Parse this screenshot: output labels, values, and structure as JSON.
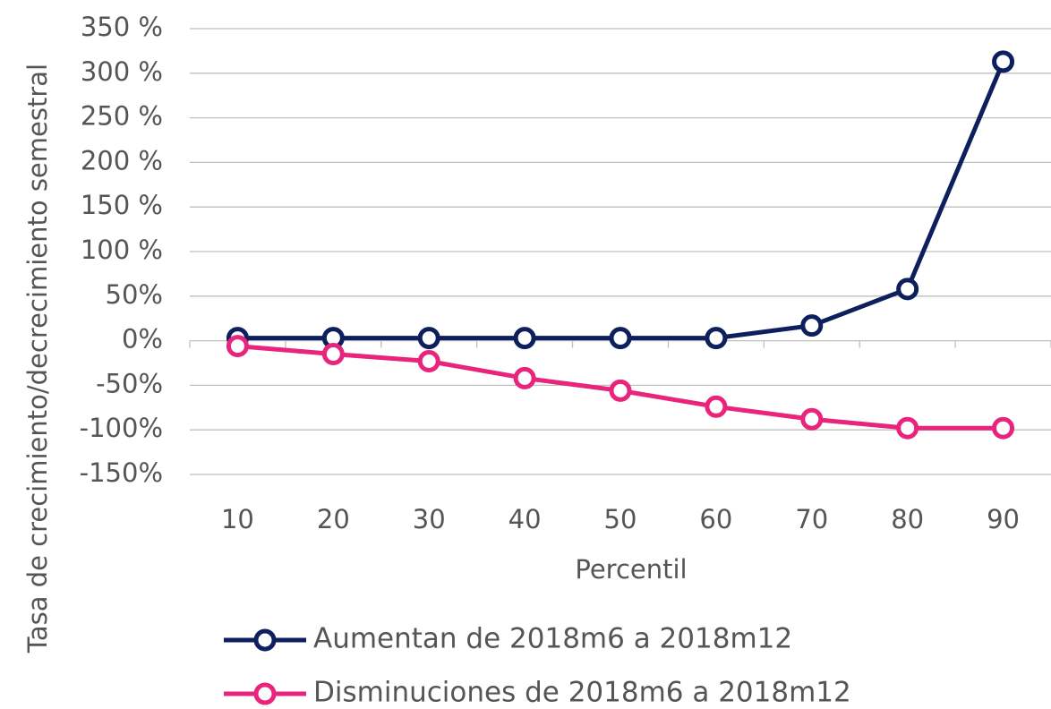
{
  "chart_data": {
    "type": "line",
    "y_label": "Tasa de crecimiento/decrecimiento semestral",
    "x_label": "Percentil",
    "categories": [
      "10",
      "20",
      "30",
      "40",
      "50",
      "60",
      "70",
      "80",
      "90"
    ],
    "series": [
      {
        "name": "Aumentan de 2018m6 a 2018m12",
        "color": "#0d1f5c",
        "values": [
          3,
          3,
          3,
          3,
          3,
          3,
          17,
          58,
          313
        ]
      },
      {
        "name": "Disminuciones de 2018m6 a 2018m12",
        "color": "#e8247c",
        "values": [
          -6,
          -15,
          -23,
          -42,
          -56,
          -74,
          -88,
          -98,
          -98
        ]
      }
    ],
    "ylim": [
      -150,
      350
    ],
    "yticks": [
      {
        "value": -150,
        "label": "-150%"
      },
      {
        "value": -100,
        "label": "-100%"
      },
      {
        "value": -50,
        "label": "-50%"
      },
      {
        "value": 0,
        "label": "0%"
      },
      {
        "value": 50,
        "label": "50%"
      },
      {
        "value": 100,
        "label": "100 %"
      },
      {
        "value": 150,
        "label": "150 %"
      },
      {
        "value": 200,
        "label": "200 %"
      },
      {
        "value": 250,
        "label": "250 %"
      },
      {
        "value": 300,
        "label": "300 %"
      },
      {
        "value": 350,
        "label": "350 %"
      }
    ],
    "grid": true
  }
}
